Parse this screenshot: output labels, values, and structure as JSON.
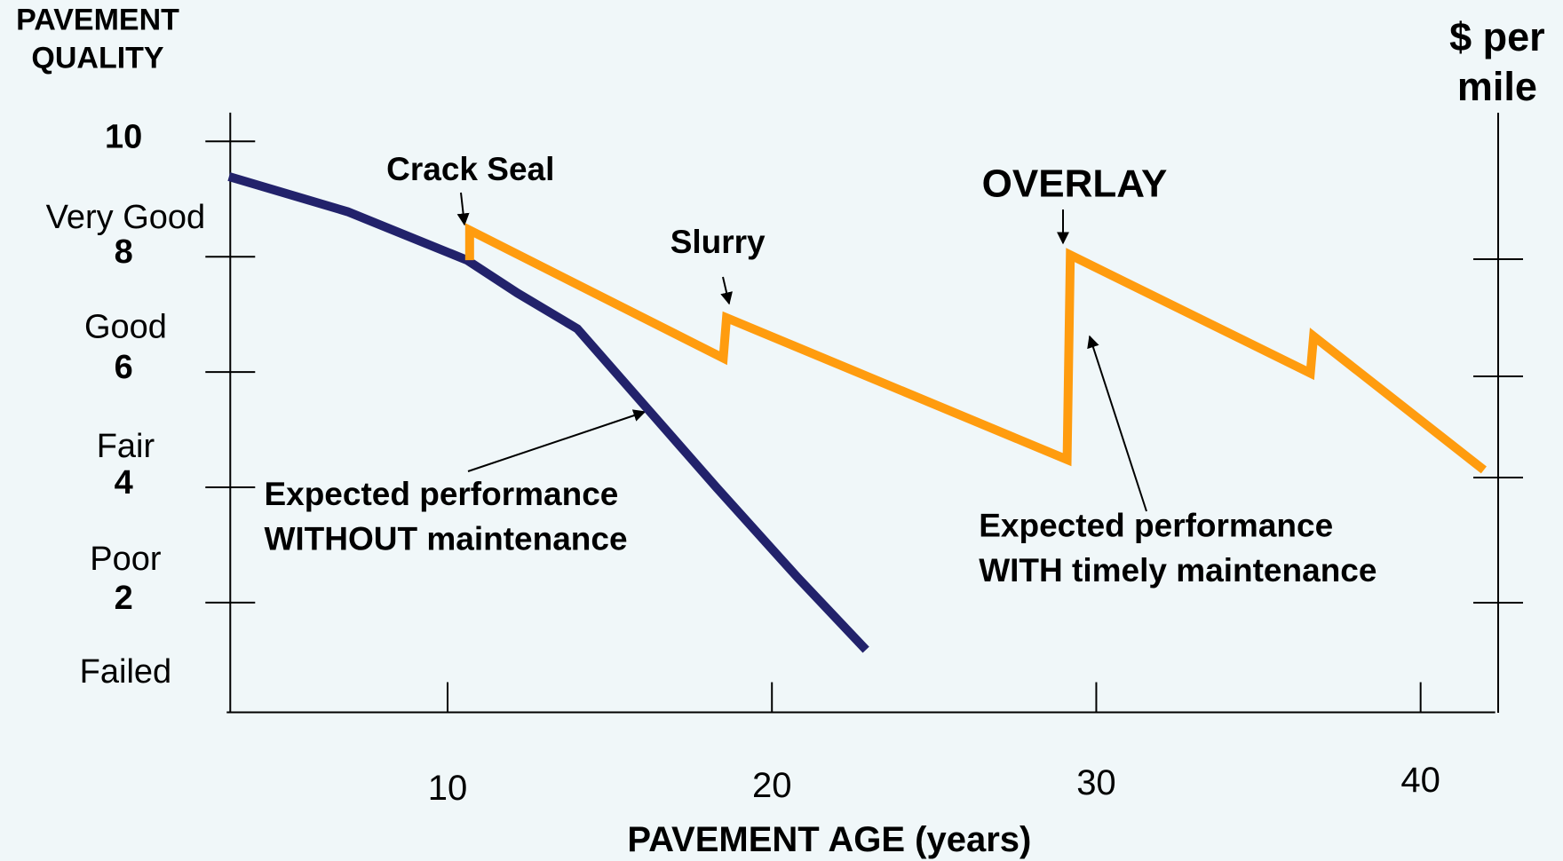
{
  "chart_data": {
    "type": "line",
    "y_label": [
      "PAVEMENT",
      "QUALITY"
    ],
    "y2_label": [
      "$ per",
      "mile"
    ],
    "x_label": "PAVEMENT AGE (years)",
    "y_category_labels": [
      "Very Good",
      "Good",
      "Fair",
      "Poor",
      "Failed"
    ],
    "xlim": [
      3.3,
      42.3
    ],
    "ylim": [
      0,
      10.5
    ],
    "xticks": [
      10,
      20,
      30,
      40
    ],
    "yticks": [
      2,
      4,
      6,
      8,
      10
    ],
    "series": [
      {
        "name": "Expected performance WITHOUT maintenance",
        "color": "#22226b",
        "x": [
          3.26,
          6.92,
          10.6,
          12.15,
          14.0,
          16.15,
          18.3,
          20.8,
          22.9
        ],
        "values": [
          9.39,
          8.78,
          7.94,
          7.37,
          6.75,
          5.37,
          3.99,
          2.43,
          1.18
        ]
      },
      {
        "name": "Expected performance WITH timely maintenance",
        "color": "#ff9c0f",
        "x": [
          10.68,
          10.68,
          18.5,
          18.6,
          29.1,
          29.2,
          36.6,
          36.7,
          41.95
        ],
        "values": [
          7.94,
          8.46,
          6.24,
          6.94,
          4.48,
          8.03,
          5.98,
          6.62,
          4.3
        ]
      }
    ],
    "annotations": [
      {
        "text": "Crack Seal"
      },
      {
        "text": "Slurry"
      },
      {
        "text": "OVERLAY"
      },
      {
        "lines": [
          "Expected performance",
          "WITHOUT maintenance"
        ]
      },
      {
        "lines": [
          "Expected performance",
          "WITH timely maintenance"
        ]
      }
    ]
  }
}
